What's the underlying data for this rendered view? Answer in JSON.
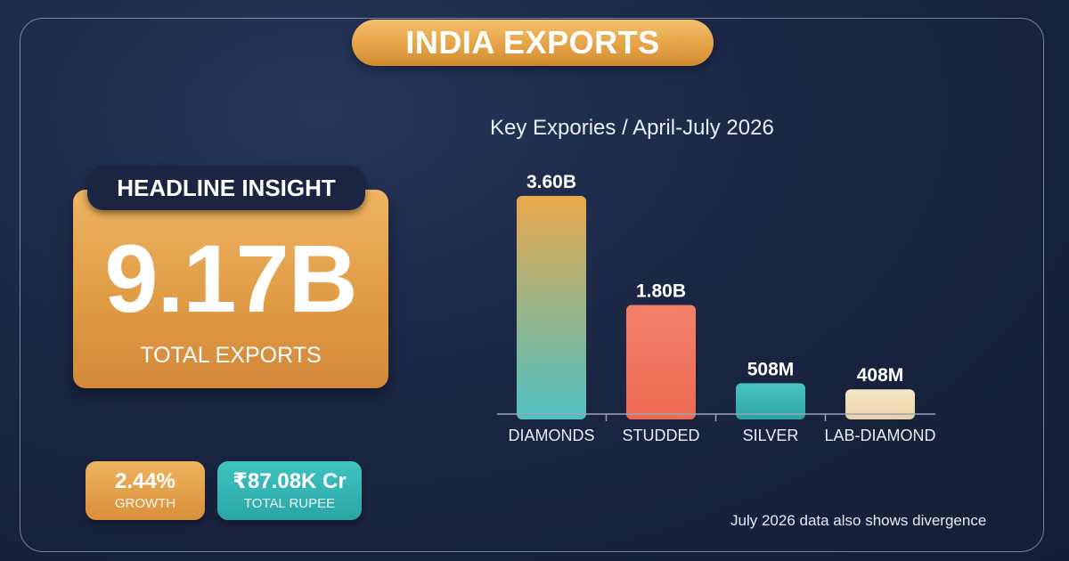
{
  "header": {
    "title": "INDIA EXPORTS"
  },
  "headline": {
    "label": "HEADLINE INSIGHT",
    "value": "9.17B",
    "subtitle": "TOTAL EXPORTS"
  },
  "stats": [
    {
      "value": "2.44%",
      "label": "GROWTH",
      "color": "#e3a04a"
    },
    {
      "value": "₹87.08K Cr",
      "label": "TOTAL RUPEE",
      "color": "#35b6b3"
    }
  ],
  "footnote": "July 2026 data also shows divergence",
  "colors": {
    "background": "#1a2643",
    "accent_gold": "#e5a346",
    "accent_teal": "#35b6b3",
    "accent_coral": "#f07a62",
    "accent_cream": "#f3dfb8"
  },
  "chart_data": {
    "type": "bar",
    "title": "Key Expories / April-July 2026",
    "categories": [
      "DIAMONDS",
      "STUDDED",
      "SILVER",
      "LAB-DIAMOND"
    ],
    "values": [
      3600,
      1800,
      508,
      408
    ],
    "unit": "M USD",
    "data_labels": [
      "3.60B",
      "1.80B",
      "508M",
      "408M"
    ],
    "bar_colors": [
      [
        "#e9a84c",
        "#4fc0c4"
      ],
      [
        "#f3806a",
        "#ee6a52"
      ],
      [
        "#49c4c2",
        "#2aa4a6"
      ],
      [
        "#f6e6c4",
        "#ecd3a6"
      ]
    ],
    "xlabel": "",
    "ylabel": "",
    "grid": false,
    "legend": "none"
  }
}
